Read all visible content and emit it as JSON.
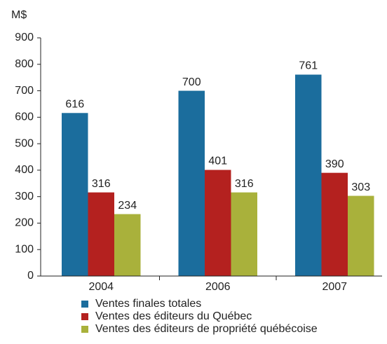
{
  "chart_data": {
    "type": "bar",
    "y_label": "M$",
    "categories": [
      "2004",
      "2006",
      "2007"
    ],
    "series": [
      {
        "name": "Ventes finales totales",
        "color": "#1b6d9d",
        "values": [
          616,
          700,
          761
        ]
      },
      {
        "name": "Ventes des éditeurs du Québec",
        "color": "#b4211f",
        "values": [
          316,
          401,
          390
        ]
      },
      {
        "name": "Ventes des éditeurs de propriété québécoise",
        "color": "#a9b13b",
        "values": [
          234,
          316,
          303
        ]
      }
    ],
    "ylim": [
      0,
      900
    ],
    "yticks": [
      0,
      100,
      200,
      300,
      400,
      500,
      600,
      700,
      800,
      900
    ],
    "grid": false,
    "legend": "bottom"
  }
}
